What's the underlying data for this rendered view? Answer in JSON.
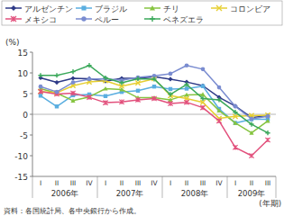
{
  "chart_data": {
    "type": "line",
    "y_label": "(%)",
    "x_label": "(年期)",
    "source": "資料：各国統計局、各中央銀行から作成。",
    "categories": [
      "I",
      "II",
      "III",
      "IV",
      "I",
      "II",
      "III",
      "IV",
      "I",
      "II",
      "III",
      "IV",
      "I",
      "II",
      "III"
    ],
    "x_groups": [
      "2006年",
      "2007年",
      "2008年",
      "2009年"
    ],
    "ylim": [
      -15,
      15
    ],
    "yticks": [
      -15,
      -10,
      -5,
      0,
      5,
      10,
      15
    ],
    "grid": false,
    "legend": "top",
    "series": [
      {
        "name": "アルゼンチン",
        "color": "#2e3a87",
        "marker": "diamond",
        "values": [
          8.8,
          7.7,
          8.7,
          8.6,
          8.0,
          8.7,
          8.7,
          9.1,
          8.5,
          7.8,
          6.9,
          4.1,
          2.0,
          -0.8,
          -0.3
        ]
      },
      {
        "name": "ブラジル",
        "color": "#5aaee0",
        "marker": "square",
        "values": [
          4.5,
          1.9,
          4.6,
          4.8,
          4.4,
          5.4,
          5.7,
          6.7,
          6.1,
          6.2,
          6.8,
          1.3,
          -2.1,
          -1.2,
          -1.2
        ]
      },
      {
        "name": "チリ",
        "color": "#86c440",
        "marker": "triangle",
        "values": [
          6.2,
          5.1,
          3.3,
          4.2,
          6.2,
          6.0,
          4.0,
          4.0,
          3.5,
          4.7,
          4.8,
          0.9,
          -2.1,
          -4.5,
          -1.6
        ]
      },
      {
        "name": "コロンビア",
        "color": "#e6cf32",
        "marker": "x",
        "values": [
          5.5,
          5.2,
          6.9,
          7.8,
          8.1,
          6.8,
          7.6,
          8.6,
          4.5,
          3.8,
          2.9,
          -1.0,
          -0.5,
          -0.3,
          -0.2
        ]
      },
      {
        "name": "メキシコ",
        "color": "#e2507c",
        "marker": "asterisk",
        "values": [
          5.5,
          4.9,
          5.1,
          4.1,
          2.8,
          3.0,
          3.5,
          3.8,
          2.6,
          2.9,
          1.6,
          -1.6,
          -8.0,
          -10.0,
          -6.2
        ]
      },
      {
        "name": "ペルー",
        "color": "#7a8cd0",
        "marker": "circle",
        "values": [
          6.7,
          5.4,
          7.7,
          8.5,
          8.6,
          8.2,
          8.9,
          9.3,
          9.8,
          11.8,
          10.9,
          6.5,
          1.9,
          -1.1,
          -0.5
        ]
      },
      {
        "name": "ベネズエラ",
        "color": "#3aa85a",
        "marker": "plus",
        "values": [
          9.4,
          9.4,
          10.3,
          11.8,
          8.8,
          7.6,
          8.6,
          8.5,
          4.8,
          7.2,
          3.8,
          3.5,
          0.5,
          -2.4,
          -4.5
        ]
      }
    ]
  }
}
